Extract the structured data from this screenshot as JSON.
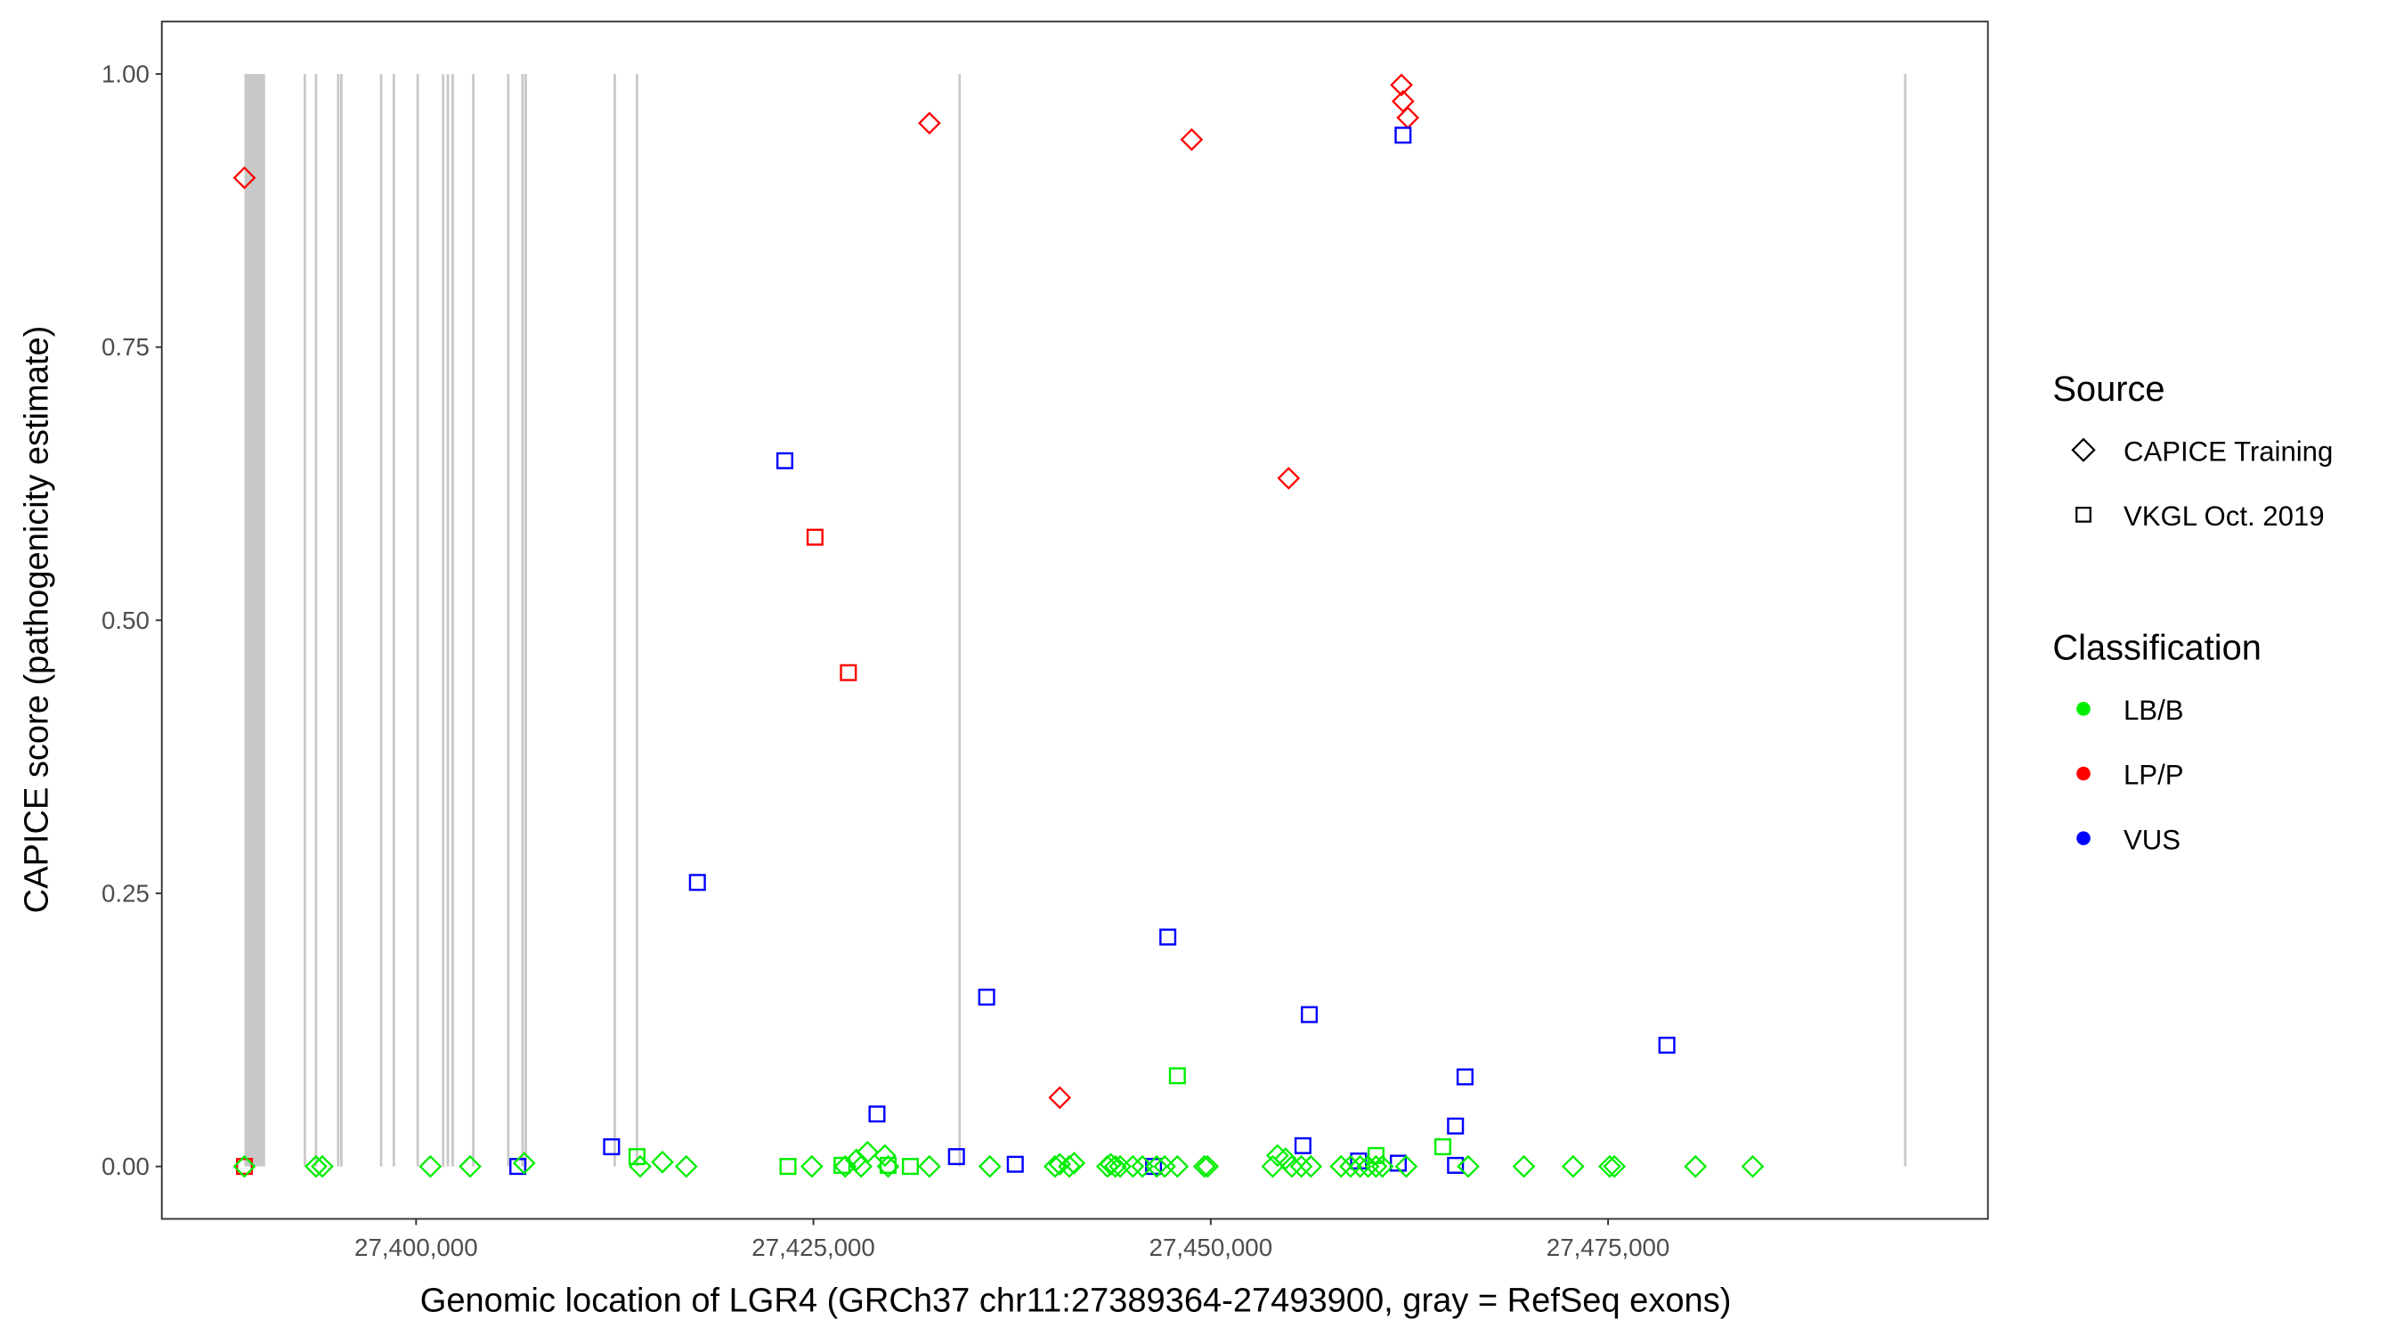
{
  "chart_data": {
    "type": "scatter",
    "xlabel": "Genomic location of LGR4 (GRCh37 chr11:27389364-27493900, gray = RefSeq exons)",
    "ylabel": "CAPICE score (pathogenicity estimate)",
    "xlim": [
      27384000,
      27498900
    ],
    "ylim": [
      -0.048,
      1.048
    ],
    "xticks": [
      27400000,
      27425000,
      27450000,
      27475000
    ],
    "xtick_labels": [
      "27,400,000",
      "27,425,000",
      "27,450,000",
      "27,475,000"
    ],
    "yticks": [
      0,
      0.25,
      0.5,
      0.75,
      1.0
    ],
    "ytick_labels": [
      "0.00",
      "0.25",
      "0.50",
      "0.75",
      "1.00"
    ],
    "grid": false,
    "exon_band": [
      27389200,
      27390500
    ],
    "exons": [
      27393000,
      27393700,
      27395100,
      27395300,
      27397800,
      27398600,
      27400100,
      27401700,
      27402000,
      27402300,
      27403600,
      27405800,
      27406700,
      27406900,
      27412500,
      27413900,
      27434200,
      27493700
    ],
    "legend": {
      "position": "right",
      "source_title": "Source",
      "sources": [
        {
          "label": "CAPICE Training",
          "shape": "diamond"
        },
        {
          "label": "VKGL Oct. 2019",
          "shape": "square"
        }
      ],
      "class_title": "Classification",
      "classes": [
        {
          "label": "LB/B",
          "color": "#00EE00"
        },
        {
          "label": "LP/P",
          "color": "#FF0000"
        },
        {
          "label": "VUS",
          "color": "#0000FF"
        }
      ]
    },
    "point_fields": [
      "position",
      "score",
      "source_index",
      "class_index"
    ],
    "points": [
      [
        27389200,
        0.905,
        0,
        1
      ],
      [
        27432300,
        0.955,
        0,
        1
      ],
      [
        27448800,
        0.94,
        0,
        1
      ],
      [
        27462000,
        0.99,
        0,
        1
      ],
      [
        27462100,
        0.975,
        0,
        1
      ],
      [
        27462400,
        0.96,
        0,
        1
      ],
      [
        27454900,
        0.63,
        0,
        1
      ],
      [
        27440500,
        0.063,
        0,
        1
      ],
      [
        27425100,
        0.576,
        1,
        1
      ],
      [
        27427200,
        0.452,
        1,
        1
      ],
      [
        27389200,
        0.0,
        1,
        1
      ],
      [
        27462100,
        0.944,
        1,
        2
      ],
      [
        27423200,
        0.646,
        1,
        2
      ],
      [
        27417700,
        0.26,
        1,
        2
      ],
      [
        27447300,
        0.21,
        1,
        2
      ],
      [
        27435900,
        0.155,
        1,
        2
      ],
      [
        27456200,
        0.139,
        1,
        2
      ],
      [
        27478700,
        0.111,
        1,
        2
      ],
      [
        27466000,
        0.082,
        1,
        2
      ],
      [
        27429000,
        0.048,
        1,
        2
      ],
      [
        27465400,
        0.037,
        1,
        2
      ],
      [
        27412300,
        0.018,
        1,
        2
      ],
      [
        27455800,
        0.019,
        1,
        2
      ],
      [
        27406400,
        0.0,
        1,
        2
      ],
      [
        27434000,
        0.009,
        1,
        2
      ],
      [
        27437700,
        0.002,
        1,
        2
      ],
      [
        27446400,
        0.0,
        1,
        2
      ],
      [
        27459300,
        0.005,
        1,
        2
      ],
      [
        27461800,
        0.003,
        1,
        2
      ],
      [
        27465400,
        0.001,
        1,
        2
      ],
      [
        27447900,
        0.083,
        1,
        0
      ],
      [
        27464600,
        0.018,
        1,
        0
      ],
      [
        27413900,
        0.009,
        1,
        0
      ],
      [
        27423400,
        0.0,
        1,
        0
      ],
      [
        27426800,
        0.001,
        1,
        0
      ],
      [
        27431100,
        0.0,
        1,
        0
      ],
      [
        27460400,
        0.01,
        1,
        0
      ],
      [
        27429700,
        0.001,
        1,
        0
      ],
      [
        27389200,
        0,
        0,
        0
      ],
      [
        27393700,
        0,
        0,
        0
      ],
      [
        27394100,
        0,
        0,
        0
      ],
      [
        27400900,
        0,
        0,
        0
      ],
      [
        27403400,
        0,
        0,
        0
      ],
      [
        27406800,
        0.003,
        0,
        0
      ],
      [
        27414100,
        0,
        0,
        0
      ],
      [
        27415500,
        0.004,
        0,
        0
      ],
      [
        27417000,
        0,
        0,
        0
      ],
      [
        27424900,
        0,
        0,
        0
      ],
      [
        27427000,
        0,
        0,
        0
      ],
      [
        27427700,
        0.006,
        0,
        0
      ],
      [
        27428000,
        0,
        0,
        0
      ],
      [
        27428400,
        0.013,
        0,
        0
      ],
      [
        27429500,
        0.01,
        0,
        0
      ],
      [
        27429700,
        0,
        0,
        0
      ],
      [
        27432300,
        0,
        0,
        0
      ],
      [
        27436100,
        0,
        0,
        0
      ],
      [
        27440200,
        0,
        0,
        0
      ],
      [
        27440500,
        0.002,
        0,
        0
      ],
      [
        27441100,
        0,
        0,
        0
      ],
      [
        27441400,
        0.003,
        0,
        0
      ],
      [
        27443500,
        0,
        0,
        0
      ],
      [
        27443700,
        0.002,
        0,
        0
      ],
      [
        27444000,
        0,
        0,
        0
      ],
      [
        27444300,
        0,
        0,
        0
      ],
      [
        27445100,
        0,
        0,
        0
      ],
      [
        27445700,
        0,
        0,
        0
      ],
      [
        27446600,
        0,
        0,
        0
      ],
      [
        27447100,
        0,
        0,
        0
      ],
      [
        27447900,
        0,
        0,
        0
      ],
      [
        27449600,
        0,
        0,
        0
      ],
      [
        27449800,
        0,
        0,
        0
      ],
      [
        27453900,
        0,
        0,
        0
      ],
      [
        27454200,
        0.01,
        0,
        0
      ],
      [
        27454700,
        0.007,
        0,
        0
      ],
      [
        27455100,
        0,
        0,
        0
      ],
      [
        27455700,
        0,
        0,
        0
      ],
      [
        27456300,
        0,
        0,
        0
      ],
      [
        27458200,
        0,
        0,
        0
      ],
      [
        27458800,
        0,
        0,
        0
      ],
      [
        27459400,
        0,
        0,
        0
      ],
      [
        27459900,
        0,
        0,
        0
      ],
      [
        27460400,
        0,
        0,
        0
      ],
      [
        27460800,
        0,
        0,
        0
      ],
      [
        27462300,
        0,
        0,
        0
      ],
      [
        27466200,
        0,
        0,
        0
      ],
      [
        27469700,
        0,
        0,
        0
      ],
      [
        27472800,
        0,
        0,
        0
      ],
      [
        27475100,
        0,
        0,
        0
      ],
      [
        27475400,
        0,
        0,
        0
      ],
      [
        27480500,
        0,
        0,
        0
      ],
      [
        27484100,
        0,
        0,
        0
      ]
    ]
  }
}
